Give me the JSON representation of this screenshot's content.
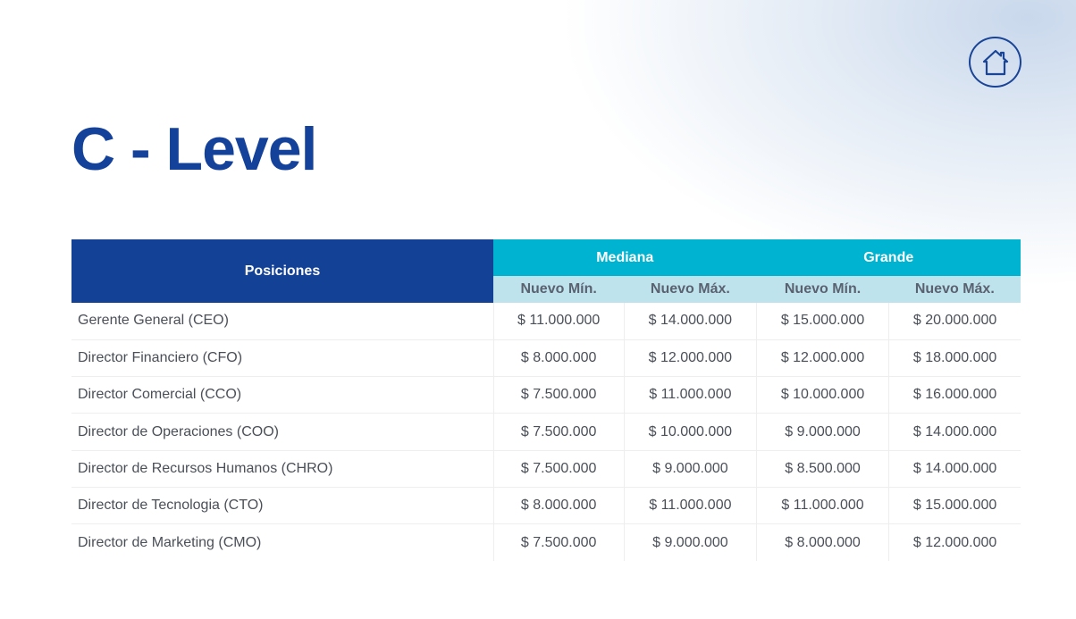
{
  "title": "C - Level",
  "icons": {
    "home": "home-icon"
  },
  "colors": {
    "primary": "#134196",
    "accent": "#00b3d0",
    "subheader": "#bfe3ed"
  },
  "table": {
    "position_header": "Posiciones",
    "groups": [
      "Mediana",
      "Grande"
    ],
    "subheaders": [
      "Nuevo Mín.",
      "Nuevo Máx.",
      "Nuevo Mín.",
      "Nuevo Máx."
    ],
    "rows": [
      {
        "name": "Gerente General (CEO)",
        "values": [
          "$ 11.000.000",
          "$ 14.000.000",
          "$ 15.000.000",
          "$ 20.000.000"
        ]
      },
      {
        "name": "Director Financiero (CFO)",
        "values": [
          "$ 8.000.000",
          "$ 12.000.000",
          "$ 12.000.000",
          "$ 18.000.000"
        ]
      },
      {
        "name": "Director Comercial (CCO)",
        "values": [
          "$ 7.500.000",
          "$ 11.000.000",
          "$ 10.000.000",
          "$ 16.000.000"
        ]
      },
      {
        "name": "Director de Operaciones (COO)",
        "values": [
          "$ 7.500.000",
          "$ 10.000.000",
          "$ 9.000.000",
          "$ 14.000.000"
        ]
      },
      {
        "name": "Director de Recursos Humanos (CHRO)",
        "values": [
          "$ 7.500.000",
          "$ 9.000.000",
          "$ 8.500.000",
          "$ 14.000.000"
        ]
      },
      {
        "name": "Director de Tecnologia (CTO)",
        "values": [
          "$ 8.000.000",
          "$ 11.000.000",
          "$ 11.000.000",
          "$ 15.000.000"
        ]
      },
      {
        "name": "Director de Marketing (CMO)",
        "values": [
          "$ 7.500.000",
          "$ 9.000.000",
          "$ 8.000.000",
          "$ 12.000.000"
        ]
      }
    ]
  }
}
